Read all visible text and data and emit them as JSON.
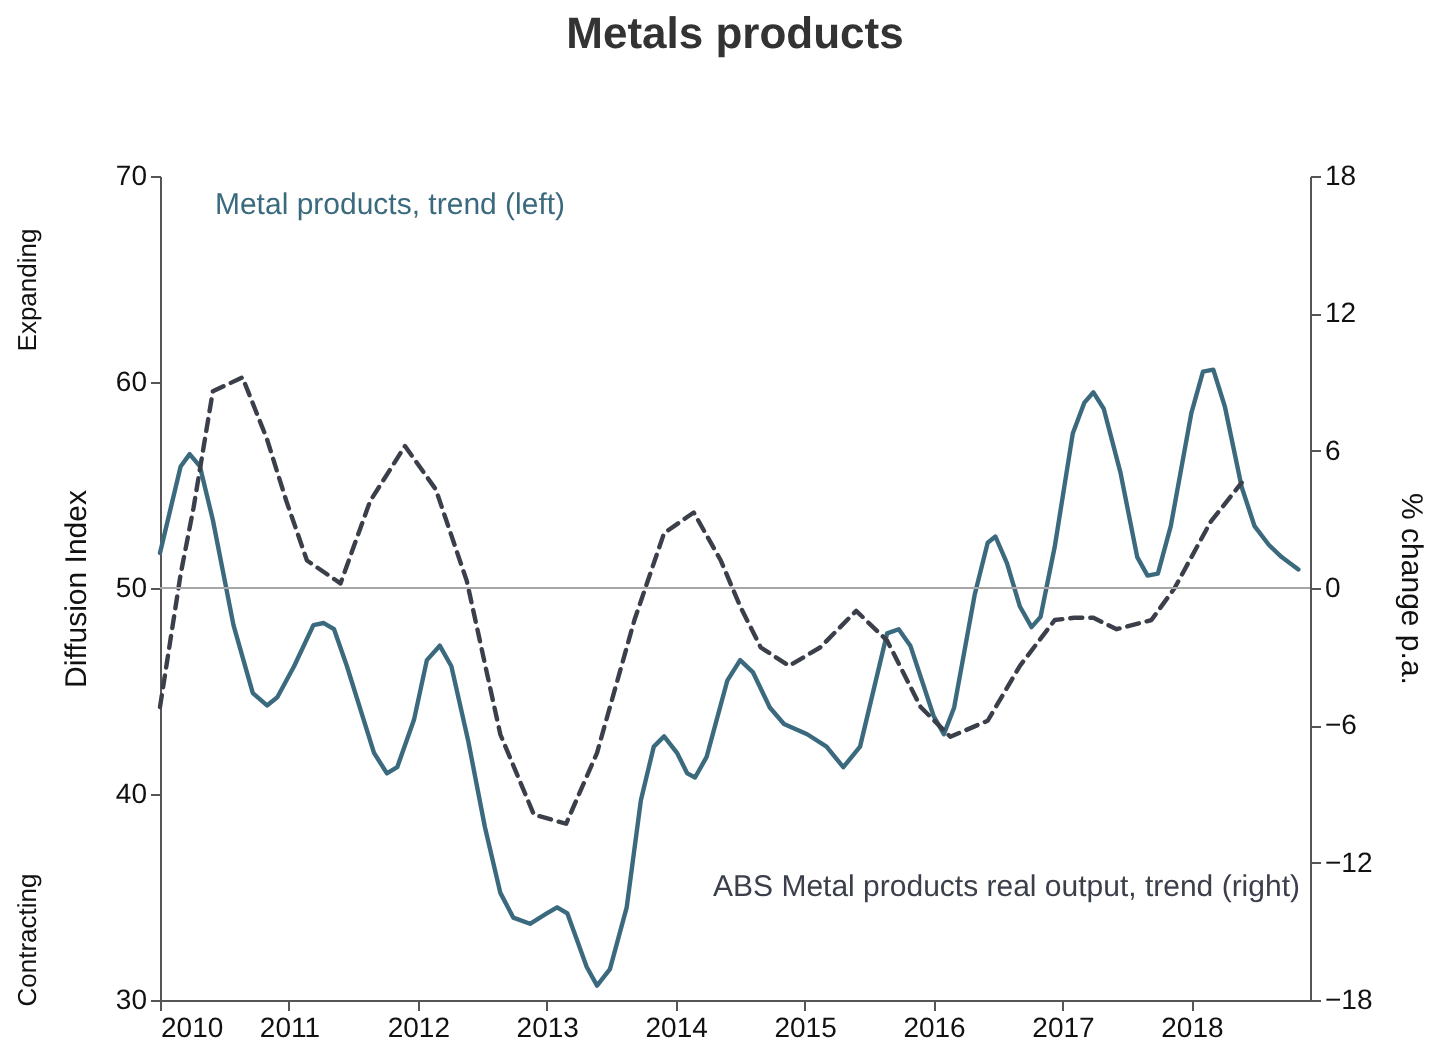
{
  "chart_data": {
    "type": "line",
    "title": "Metals products",
    "ylabel": "Diffusion Index",
    "y2label": "% change p.a.",
    "annotations": [
      "Expanding",
      "Contracting"
    ],
    "xlim": [
      2010,
      2018.92
    ],
    "xticks": [
      2010,
      2011,
      2012,
      2013,
      2014,
      2015,
      2016,
      2017,
      2018
    ],
    "ylim": [
      30,
      70
    ],
    "yticks": [
      30,
      40,
      50,
      60,
      70
    ],
    "y2lim": [
      -18,
      18
    ],
    "y2ticks": [
      -18,
      -12,
      -6,
      0,
      6,
      12,
      18
    ],
    "ref_lines": [
      {
        "axis": "y",
        "value": 50,
        "color": "#a6a6a6"
      }
    ],
    "series": [
      {
        "name": "Metal products, trend (left)",
        "color": "#3b6a7e",
        "line_style": "solid",
        "x": [
          2010.0,
          2010.16,
          2010.23,
          2010.31,
          2010.41,
          2010.57,
          2010.72,
          2010.83,
          2010.91,
          2011.04,
          2011.19,
          2011.27,
          2011.35,
          2011.45,
          2011.66,
          2011.76,
          2011.84,
          2011.97,
          2012.07,
          2012.17,
          2012.26,
          2012.39,
          2012.52,
          2012.64,
          2012.74,
          2012.87,
          2013.0,
          2013.08,
          2013.16,
          2013.31,
          2013.39,
          2013.49,
          2013.62,
          2013.73,
          2013.83,
          2013.91,
          2014.01,
          2014.09,
          2014.15,
          2014.24,
          2014.4,
          2014.5,
          2014.6,
          2014.73,
          2014.84,
          2015.02,
          2015.17,
          2015.3,
          2015.43,
          2015.64,
          2015.73,
          2015.82,
          2016.0,
          2016.08,
          2016.16,
          2016.32,
          2016.42,
          2016.48,
          2016.57,
          2016.67,
          2016.76,
          2016.83,
          2016.94,
          2017.08,
          2017.17,
          2017.24,
          2017.32,
          2017.45,
          2017.58,
          2017.66,
          2017.74,
          2017.84,
          2018.0,
          2018.09,
          2018.17,
          2018.26,
          2018.39,
          2018.49,
          2018.6,
          2018.7,
          2018.83
        ],
        "values": [
          51.7,
          55.9,
          56.5,
          55.9,
          53.3,
          48.2,
          44.9,
          44.3,
          44.7,
          46.2,
          48.2,
          48.3,
          48.0,
          46.2,
          42.0,
          41.0,
          41.3,
          43.6,
          46.5,
          47.2,
          46.2,
          42.6,
          38.4,
          35.2,
          34.0,
          33.7,
          34.2,
          34.5,
          34.2,
          31.6,
          30.7,
          31.5,
          34.5,
          39.7,
          42.3,
          42.8,
          42.0,
          41.0,
          40.8,
          41.8,
          45.5,
          46.5,
          45.9,
          44.2,
          43.4,
          42.9,
          42.3,
          41.3,
          42.3,
          47.8,
          48.0,
          47.2,
          43.8,
          42.9,
          44.2,
          49.7,
          52.2,
          52.5,
          51.2,
          49.1,
          48.1,
          48.6,
          52.0,
          57.5,
          59.0,
          59.5,
          58.7,
          55.6,
          51.5,
          50.6,
          50.7,
          53.0,
          58.5,
          60.5,
          60.6,
          58.8,
          54.9,
          53.0,
          52.1,
          51.5,
          50.9
        ]
      },
      {
        "name": "ABS Metal products real output, trend (right)",
        "color": "#3a3f4a",
        "line_style": "dashed",
        "axis": "y2",
        "x": [
          2010.0,
          2010.16,
          2010.26,
          2010.41,
          2010.64,
          2010.83,
          2010.98,
          2011.14,
          2011.4,
          2011.63,
          2011.9,
          2012.14,
          2012.38,
          2012.64,
          2012.9,
          2013.15,
          2013.39,
          2013.68,
          2013.91,
          2014.14,
          2014.35,
          2014.5,
          2014.66,
          2014.88,
          2015.12,
          2015.4,
          2015.64,
          2015.9,
          2016.13,
          2016.42,
          2016.67,
          2016.94,
          2017.09,
          2017.24,
          2017.42,
          2017.69,
          2017.87,
          2018.15,
          2018.39
        ],
        "values": [
          -5.2,
          0.6,
          3.5,
          8.6,
          9.2,
          6.5,
          3.8,
          1.2,
          0.2,
          3.8,
          6.2,
          4.3,
          0.3,
          -6.4,
          -9.9,
          -10.3,
          -7.2,
          -1.4,
          2.4,
          3.3,
          1.2,
          -0.8,
          -2.6,
          -3.4,
          -2.6,
          -1.0,
          -2.3,
          -5.2,
          -6.5,
          -5.8,
          -3.4,
          -1.4,
          -1.3,
          -1.3,
          -1.8,
          -1.4,
          0.0,
          2.9,
          4.6
        ]
      }
    ]
  }
}
